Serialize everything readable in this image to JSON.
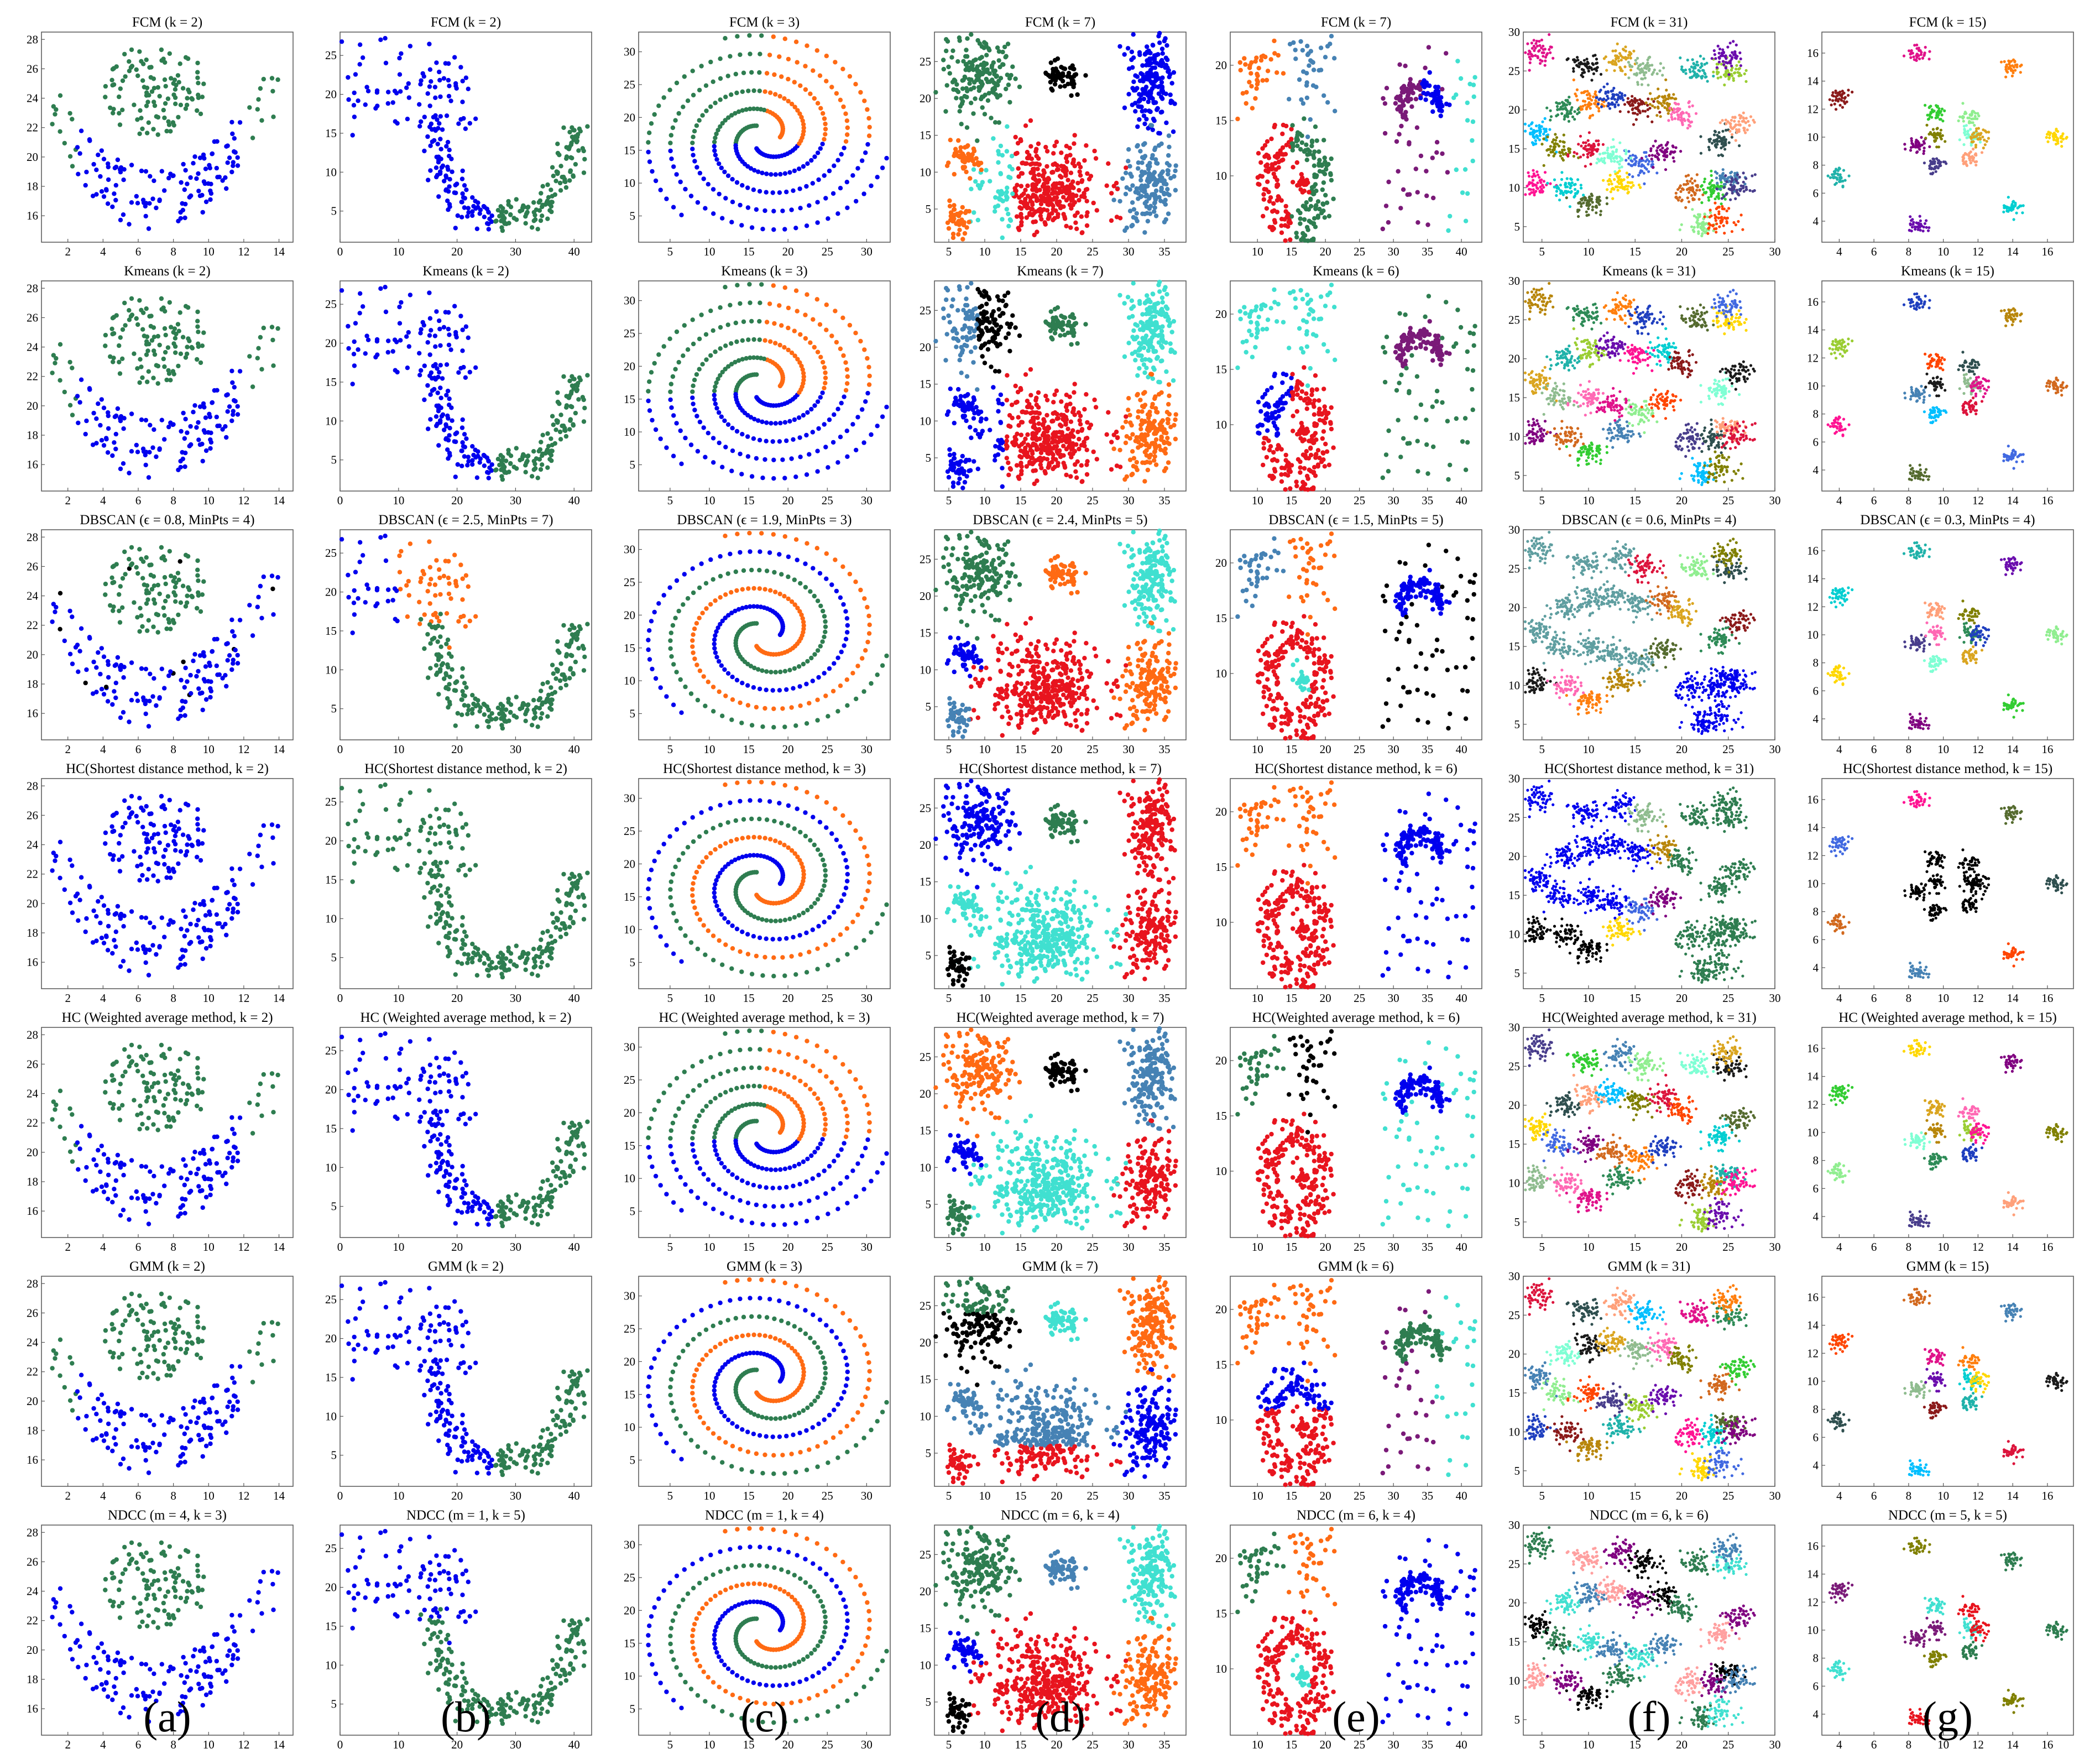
{
  "figure": {
    "columns": [
      "(a)",
      "(b)",
      "(c)",
      "(d)",
      "(e)",
      "(f)",
      "(g)"
    ],
    "titles": [
      [
        "FCM (k = 2)",
        "FCM (k = 2)",
        "FCM (k = 3)",
        "FCM (k = 7)",
        "FCM (k = 7)",
        "FCM (k = 31)",
        "FCM (k = 15)"
      ],
      [
        "Kmeans (k = 2)",
        "Kmeans (k = 2)",
        "Kmeans (k = 3)",
        "Kmeans (k = 7)",
        "Kmeans (k = 6)",
        "Kmeans (k = 31)",
        "Kmeans (k = 15)"
      ],
      [
        "DBSCAN (ϵ = 0.8, MinPts = 4)",
        "DBSCAN (ϵ = 2.5, MinPts = 7)",
        "DBSCAN (ϵ = 1.9, MinPts = 3)",
        "DBSCAN (ϵ = 2.4, MinPts = 5)",
        "DBSCAN (ϵ = 1.5, MinPts = 5)",
        "DBSCAN (ϵ = 0.6, MinPts = 4)",
        "DBSCAN (ϵ = 0.3, MinPts = 4)"
      ],
      [
        "HC(Shortest distance method, k = 2)",
        "HC(Shortest distance method, k = 2)",
        "HC(Shortest distance method, k = 3)",
        "HC(Shortest distance method, k = 7)",
        "HC(Shortest distance method, k = 6)",
        "HC(Shortest distance method, k = 31)",
        "HC(Shortest distance method, k = 15)"
      ],
      [
        "HC (Weighted average method, k = 2)",
        "HC (Weighted average method, k = 2)",
        "HC (Weighted average method, k = 3)",
        "HC(Weighted average method, k = 7)",
        "HC(Weighted average method, k = 6)",
        "HC(Weighted average method, k = 31)",
        "HC (Weighted average method, k = 15)"
      ],
      [
        "GMM (k = 2)",
        "GMM (k = 2)",
        "GMM (k = 3)",
        "GMM (k = 7)",
        "GMM (k = 6)",
        "GMM (k = 31)",
        "GMM (k = 15)"
      ],
      [
        "NDCC (m = 4, k = 3)",
        "NDCC (m = 1, k = 5)",
        "NDCC (m = 1, k = 4)",
        "NDCC (m = 6, k = 4)",
        "NDCC (m = 6, k = 4)",
        "NDCC (m = 6, k = 6)",
        "NDCC (m = 5, k = 5)"
      ]
    ]
  },
  "chart_data": {
    "type": "scatter",
    "layout": "7 rows (methods) x 7 columns (datasets)",
    "datasets": [
      {
        "column": "(a)",
        "name": "",
        "xlim": [
          0.5,
          14.8
        ],
        "ylim": [
          14.2,
          28.5
        ],
        "xticks": [
          2,
          4,
          6,
          8,
          10,
          12,
          14
        ],
        "yticks": [
          16,
          18,
          20,
          22,
          24,
          26,
          28
        ]
      },
      {
        "column": "(b)",
        "name": "",
        "xlim": [
          0,
          43
        ],
        "ylim": [
          1,
          28
        ],
        "xticks": [
          0,
          10,
          20,
          30,
          40
        ],
        "yticks": [
          5,
          10,
          15,
          20,
          25
        ]
      },
      {
        "column": "(c)",
        "name": "",
        "xlim": [
          1,
          33
        ],
        "ylim": [
          1,
          33
        ],
        "xticks": [
          5,
          10,
          15,
          20,
          25,
          30
        ],
        "yticks": [
          5,
          10,
          15,
          20,
          25,
          30
        ]
      },
      {
        "column": "(d)",
        "name": "",
        "xlim": [
          3,
          38
        ],
        "ylim": [
          0.5,
          29
        ],
        "xticks": [
          5,
          10,
          15,
          20,
          25,
          30,
          35
        ],
        "yticks": [
          5,
          10,
          15,
          20,
          25
        ]
      },
      {
        "column": "(e)",
        "name": "",
        "xlim": [
          6,
          43
        ],
        "ylim": [
          4,
          23
        ],
        "xticks": [
          10,
          15,
          20,
          25,
          30,
          35,
          40
        ],
        "yticks": [
          10,
          15,
          20
        ]
      },
      {
        "column": "(f)",
        "name": "",
        "xlim": [
          3,
          30
        ],
        "ylim": [
          3,
          30
        ],
        "xticks": [
          5,
          10,
          15,
          20,
          25,
          30
        ],
        "yticks": [
          5,
          10,
          15,
          20,
          25,
          30
        ]
      },
      {
        "column": "(g)",
        "name": "",
        "xlim": [
          3,
          17.5
        ],
        "ylim": [
          2.5,
          17.5
        ],
        "xticks": [
          4,
          6,
          8,
          10,
          12,
          14,
          16
        ],
        "yticks": [
          4,
          6,
          8,
          10,
          12,
          14,
          16
        ]
      }
    ],
    "methods": [
      "FCM",
      "Kmeans",
      "DBSCAN",
      "HC(Shortest distance method)",
      "HC (Weighted average method)",
      "GMM",
      "NDCC"
    ],
    "colors": {
      "blue": "#0000ee",
      "green": "#2e7d50",
      "orange": "#ff6a13",
      "black": "#000000",
      "cyan": "#40e0d0",
      "red": "#e8141e",
      "steel": "#4682b4",
      "purple": "#7a1a78"
    },
    "palette31": [
      "#e0128a",
      "#2e8b57",
      "#ff7f0e",
      "#1f3fbf",
      "#8b1a1a",
      "#b8860b",
      "#20b2aa",
      "#9acd32",
      "#6a0dad",
      "#ff1493",
      "#00ced1",
      "#556b2f",
      "#ffd700",
      "#4169e1",
      "#800080",
      "#d2691e",
      "#32cd32",
      "#4682b4",
      "#90ee90",
      "#ff4500",
      "#483d8b",
      "#2f4f4f",
      "#ffa07a",
      "#00bfff",
      "#808000",
      "#dc143c",
      "#7fffd4",
      "#1a1a1a",
      "#daa520",
      "#8fbc8f",
      "#ff69b4"
    ],
    "grid": false,
    "legend": "none"
  }
}
